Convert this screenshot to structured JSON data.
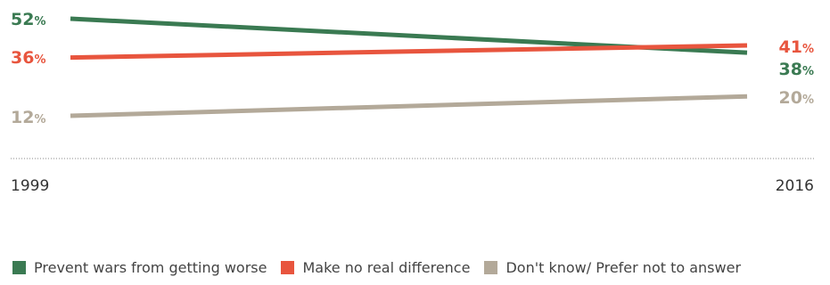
{
  "chart_data": {
    "type": "line",
    "x": [
      "1999",
      "2016"
    ],
    "ylim": [
      0,
      60
    ],
    "grid": false,
    "legend_position": "bottom",
    "percent_suffix": "%",
    "series": [
      {
        "name": "Prevent wars from getting worse",
        "values": [
          52,
          38
        ],
        "color": "#3a7a52"
      },
      {
        "name": "Make no real difference",
        "values": [
          36,
          41
        ],
        "color": "#e8553e"
      },
      {
        "name": "Don't know/ Prefer not to answer",
        "values": [
          12,
          20
        ],
        "color": "#b3a999"
      }
    ]
  }
}
